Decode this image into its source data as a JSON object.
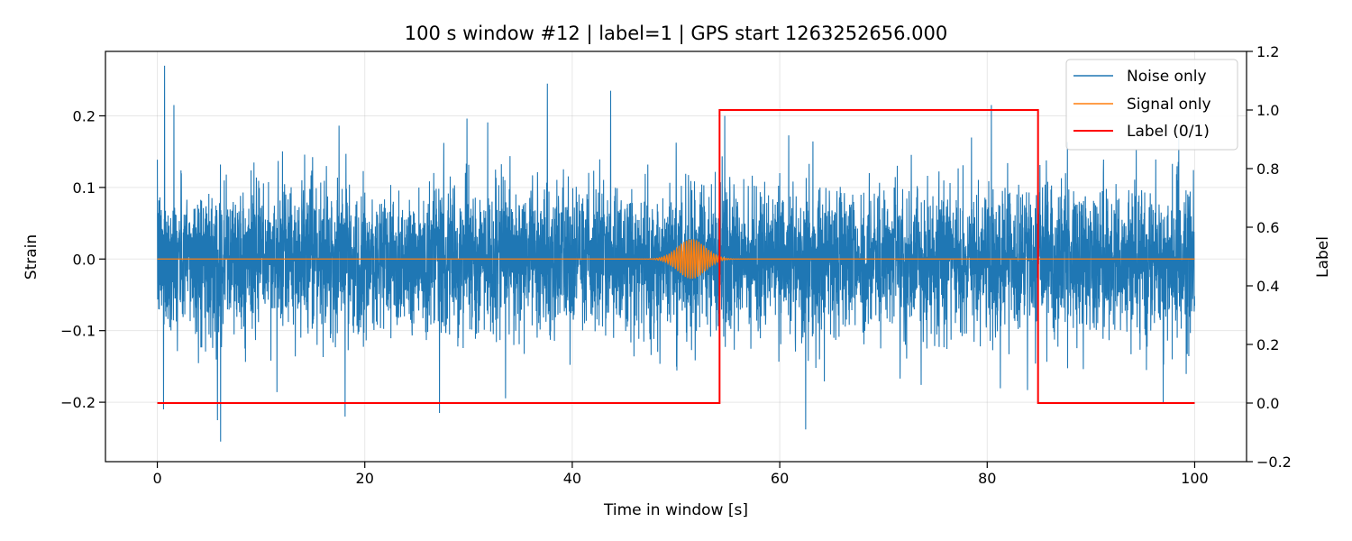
{
  "chart_data": {
    "type": "line",
    "title": "100 s window #12 | label=1 | GPS start 1263252656.000",
    "xlabel": "Time in window [s]",
    "ylabel": "Strain",
    "y2label": "Label",
    "xlim": [
      -5,
      105
    ],
    "ylim": [
      -0.283,
      0.29
    ],
    "y2lim": [
      -0.2,
      1.2
    ],
    "x_ticks": [
      0,
      20,
      40,
      60,
      80,
      100
    ],
    "x_tick_labels": [
      "0",
      "20",
      "40",
      "60",
      "80",
      "100"
    ],
    "y_ticks": [
      -0.2,
      -0.1,
      0.0,
      0.1,
      0.2
    ],
    "y_tick_labels": [
      "−0.2",
      "−0.1",
      "0.0",
      "0.1",
      "0.2"
    ],
    "y2_ticks": [
      -0.2,
      0.0,
      0.2,
      0.4,
      0.6,
      0.8,
      1.0,
      1.2
    ],
    "y2_tick_labels": [
      "−0.2",
      "0.0",
      "0.2",
      "0.4",
      "0.6",
      "0.8",
      "1.0",
      "1.2"
    ],
    "grid": true,
    "legend_position": "top-right",
    "series": [
      {
        "name": "Noise only",
        "color": "#1f77b4",
        "axis": "left",
        "duration_s": 100,
        "typical_amplitude": 0.05,
        "envelope_max": 0.27,
        "envelope_min": -0.255,
        "extreme_points": [
          {
            "x": 0.7,
            "y": 0.27
          },
          {
            "x": 0.6,
            "y": -0.21
          },
          {
            "x": 1.6,
            "y": 0.215
          },
          {
            "x": 6.1,
            "y": -0.255
          },
          {
            "x": 5.8,
            "y": -0.225
          },
          {
            "x": 18.1,
            "y": -0.22
          },
          {
            "x": 27.2,
            "y": -0.215
          },
          {
            "x": 37.6,
            "y": 0.245
          },
          {
            "x": 43.7,
            "y": 0.235
          },
          {
            "x": 62.5,
            "y": -0.238
          },
          {
            "x": 80.4,
            "y": 0.215
          }
        ]
      },
      {
        "name": "Signal only",
        "color": "#ff7f0e",
        "axis": "left",
        "baseline": 0.0,
        "peak_time_s": 51.5,
        "peak_amplitude": 0.028,
        "burst_span_s": [
          48.8,
          53.8
        ]
      },
      {
        "name": "Label (0/1)",
        "color": "#ff0000",
        "axis": "right",
        "x": [
          0,
          54.2,
          54.2,
          84.9,
          84.9,
          100
        ],
        "y": [
          0,
          0,
          1,
          1,
          0,
          0
        ]
      }
    ]
  }
}
